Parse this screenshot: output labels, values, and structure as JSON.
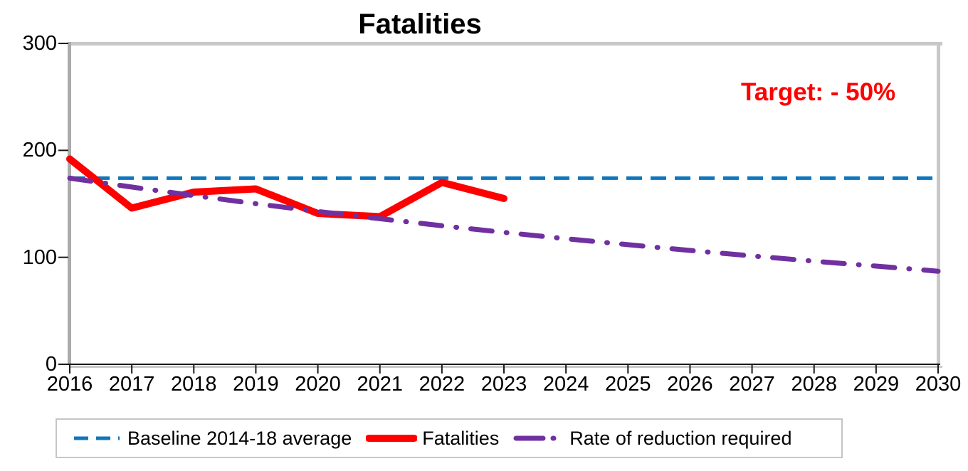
{
  "chart_data": {
    "type": "line",
    "title": "Fatalities",
    "annotation": {
      "text": "Target: - 50%",
      "color": "#FF0000"
    },
    "x_years": [
      2016,
      2017,
      2018,
      2019,
      2020,
      2021,
      2022,
      2023,
      2024,
      2025,
      2026,
      2027,
      2028,
      2029,
      2030
    ],
    "ylim": [
      0,
      300
    ],
    "yticks": [
      0,
      100,
      200,
      300
    ],
    "grid": false,
    "legend_position": "bottom",
    "axis_color": "#ababab",
    "border_color": "#c8c8c8",
    "series": [
      {
        "name": "Baseline 2014-18 average",
        "slug": "baseline",
        "style": "dashed",
        "color": "#1076BC",
        "width": 5,
        "x": [
          2016,
          2030
        ],
        "values": [
          174,
          174
        ]
      },
      {
        "name": "Fatalities",
        "slug": "fatalities",
        "style": "solid",
        "color": "#FF0000",
        "width": 10,
        "x": [
          2016,
          2017,
          2018,
          2019,
          2020,
          2021,
          2022,
          2023
        ],
        "values": [
          192,
          146,
          161,
          164,
          141,
          138,
          170,
          155
        ]
      },
      {
        "name": "Rate of reduction required",
        "slug": "rate-of-reduction",
        "style": "dash-dot",
        "color": "#7030A0",
        "width": 7,
        "x": [
          2016,
          2017,
          2018,
          2019,
          2020,
          2021,
          2022,
          2023,
          2024,
          2025,
          2026,
          2027,
          2028,
          2029,
          2030
        ],
        "values": [
          174,
          165.7,
          157.7,
          150.1,
          142.9,
          136.1,
          129.5,
          123.3,
          117.4,
          111.8,
          106.4,
          101.3,
          96.4,
          91.8,
          87
        ]
      }
    ]
  }
}
